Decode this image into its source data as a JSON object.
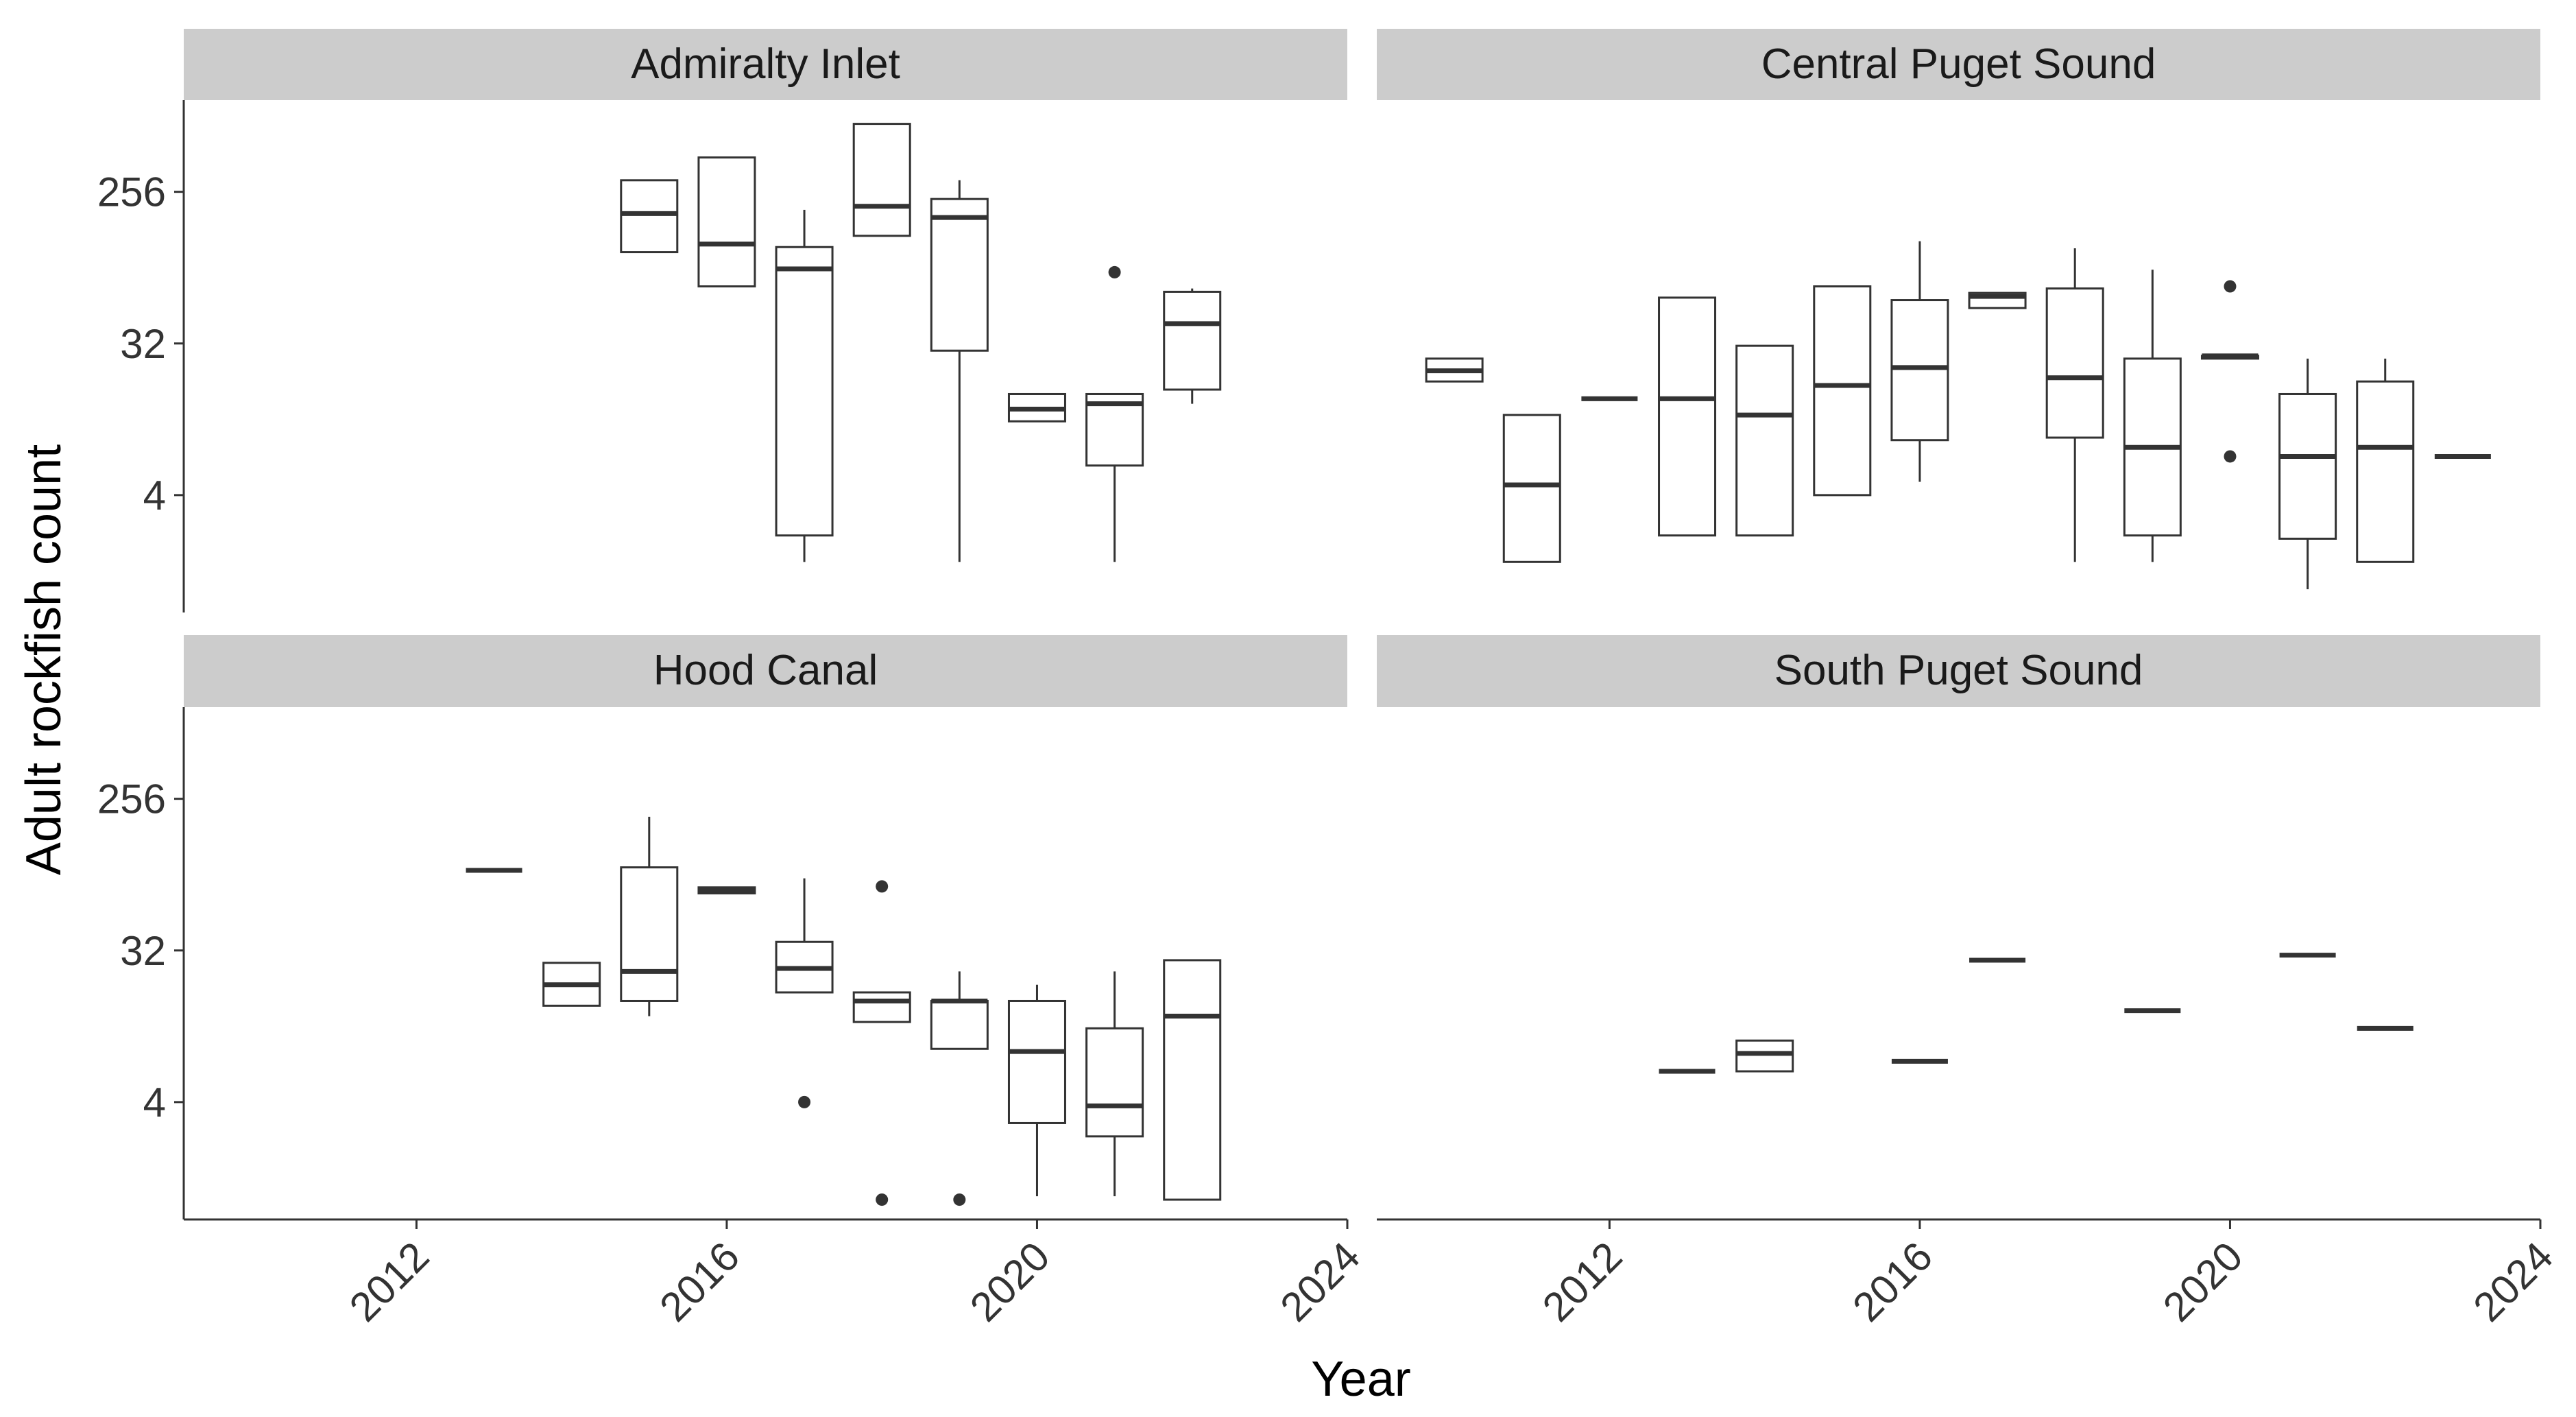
{
  "chart_data": {
    "type": "boxplot",
    "layout": "facet-grid 2x2",
    "xlabel": "Year",
    "ylabel": "Adult rockfish count",
    "y_scale": "log2",
    "y_ticks": [
      4,
      32,
      256
    ],
    "y_tick_labels": [
      "4",
      "32",
      "256"
    ],
    "x_ticks": [
      2012,
      2016,
      2020,
      2024
    ],
    "x_tick_labels": [
      "2012",
      "2016",
      "2020",
      "2024"
    ],
    "xlim": [
      2009,
      2024
    ],
    "ylim": [
      0.8,
      900
    ],
    "panels": [
      {
        "title": "Admiralty Inlet",
        "boxes": [
          {
            "year": 2015,
            "min": 112,
            "q1": 112,
            "median": 190,
            "q3": 300,
            "max": 300,
            "outliers": []
          },
          {
            "year": 2016,
            "min": 70,
            "q1": 70,
            "median": 125,
            "q3": 410,
            "max": 410,
            "outliers": []
          },
          {
            "year": 2017,
            "min": 1.6,
            "q1": 2.3,
            "median": 89,
            "q3": 120,
            "max": 200,
            "outliers": []
          },
          {
            "year": 2018,
            "min": 140,
            "q1": 140,
            "median": 210,
            "q3": 650,
            "max": 650,
            "outliers": []
          },
          {
            "year": 2019,
            "min": 1.6,
            "q1": 29,
            "median": 180,
            "q3": 232,
            "max": 300,
            "outliers": []
          },
          {
            "year": 2020,
            "min": 11,
            "q1": 11,
            "median": 13,
            "q3": 16,
            "max": 16,
            "outliers": []
          },
          {
            "year": 2021,
            "min": 1.6,
            "q1": 6,
            "median": 14,
            "q3": 16,
            "max": 16,
            "outliers": [
              85
            ]
          },
          {
            "year": 2022,
            "min": 14,
            "q1": 17,
            "median": 42,
            "q3": 65,
            "max": 68,
            "outliers": []
          }
        ]
      },
      {
        "title": "Central Puget Sound",
        "boxes": [
          {
            "year": 2010,
            "min": 19,
            "q1": 19,
            "median": 22,
            "q3": 26,
            "max": 26,
            "outliers": []
          },
          {
            "year": 2011,
            "min": 1.6,
            "q1": 1.6,
            "median": 4.6,
            "q3": 12,
            "max": 12,
            "outliers": []
          },
          {
            "year": 2012,
            "min": 15,
            "q1": 15,
            "median": 15,
            "q3": 15,
            "max": 15,
            "outliers": []
          },
          {
            "year": 2013,
            "min": 2.3,
            "q1": 2.3,
            "median": 15,
            "q3": 60,
            "max": 60,
            "outliers": []
          },
          {
            "year": 2014,
            "min": 2.3,
            "q1": 2.3,
            "median": 12,
            "q3": 31,
            "max": 31,
            "outliers": []
          },
          {
            "year": 2015,
            "min": 4,
            "q1": 4,
            "median": 18,
            "q3": 70,
            "max": 70,
            "outliers": []
          },
          {
            "year": 2016,
            "min": 4.8,
            "q1": 8.5,
            "median": 23,
            "q3": 58,
            "max": 130,
            "outliers": []
          },
          {
            "year": 2017,
            "min": 52,
            "q1": 52,
            "median": 61,
            "q3": 64,
            "max": 64,
            "outliers": []
          },
          {
            "year": 2018,
            "min": 1.6,
            "q1": 8.8,
            "median": 20,
            "q3": 68,
            "max": 118,
            "outliers": []
          },
          {
            "year": 2019,
            "min": 1.6,
            "q1": 2.3,
            "median": 7.7,
            "q3": 26,
            "max": 88,
            "outliers": []
          },
          {
            "year": 2020,
            "min": 26,
            "q1": 26,
            "median": 27,
            "q3": 27,
            "max": 27,
            "outliers": [
              70,
              6.8
            ]
          },
          {
            "year": 2021,
            "min": 1.1,
            "q1": 2.2,
            "median": 6.8,
            "q3": 16,
            "max": 26,
            "outliers": []
          },
          {
            "year": 2022,
            "min": 1.6,
            "q1": 1.6,
            "median": 7.7,
            "q3": 19,
            "max": 26,
            "outliers": []
          },
          {
            "year": 2023,
            "min": 6.8,
            "q1": 6.8,
            "median": 6.8,
            "q3": 6.8,
            "max": 6.8,
            "outliers": []
          }
        ]
      },
      {
        "title": "Hood Canal",
        "boxes": [
          {
            "year": 2013,
            "min": 96,
            "q1": 96,
            "median": 96,
            "q3": 96,
            "max": 96,
            "outliers": []
          },
          {
            "year": 2014,
            "min": 15,
            "q1": 15,
            "median": 20,
            "q3": 27,
            "max": 27,
            "outliers": []
          },
          {
            "year": 2015,
            "min": 13,
            "q1": 16,
            "median": 24,
            "q3": 100,
            "max": 200,
            "outliers": []
          },
          {
            "year": 2016,
            "min": 70,
            "q1": 70,
            "median": 73,
            "q3": 76,
            "max": 76,
            "outliers": []
          },
          {
            "year": 2017,
            "min": 18,
            "q1": 18,
            "median": 25,
            "q3": 36,
            "max": 86,
            "outliers": [
              4
            ]
          },
          {
            "year": 2018,
            "min": 12,
            "q1": 12,
            "median": 16,
            "q3": 18,
            "max": 18,
            "outliers": [
              77,
              1.05
            ]
          },
          {
            "year": 2019,
            "min": 8.3,
            "q1": 8.3,
            "median": 16,
            "q3": 16,
            "max": 24,
            "outliers": [
              1.05
            ]
          },
          {
            "year": 2020,
            "min": 1.1,
            "q1": 3,
            "median": 8,
            "q3": 16,
            "max": 20,
            "outliers": []
          },
          {
            "year": 2021,
            "min": 1.1,
            "q1": 2.5,
            "median": 3.8,
            "q3": 11,
            "max": 24,
            "outliers": []
          },
          {
            "year": 2022,
            "min": 1.05,
            "q1": 1.05,
            "median": 13,
            "q3": 28,
            "max": 28,
            "outliers": []
          }
        ]
      },
      {
        "title": "South Puget Sound",
        "boxes": [
          {
            "year": 2013,
            "min": 6.1,
            "q1": 6.1,
            "median": 6.1,
            "q3": 6.1,
            "max": 6.1,
            "outliers": []
          },
          {
            "year": 2014,
            "min": 6.1,
            "q1": 6.1,
            "median": 7.8,
            "q3": 9.3,
            "max": 9.3,
            "outliers": []
          },
          {
            "year": 2016,
            "min": 7,
            "q1": 7,
            "median": 7,
            "q3": 7,
            "max": 7,
            "outliers": []
          },
          {
            "year": 2017,
            "min": 28,
            "q1": 28,
            "median": 28,
            "q3": 28,
            "max": 28,
            "outliers": []
          },
          {
            "year": 2019,
            "min": 14,
            "q1": 14,
            "median": 14,
            "q3": 14,
            "max": 14,
            "outliers": []
          },
          {
            "year": 2021,
            "min": 30,
            "q1": 30,
            "median": 30,
            "q3": 30,
            "max": 30,
            "outliers": []
          },
          {
            "year": 2022,
            "min": 11,
            "q1": 11,
            "median": 11,
            "q3": 11,
            "max": 11,
            "outliers": []
          }
        ]
      }
    ]
  }
}
